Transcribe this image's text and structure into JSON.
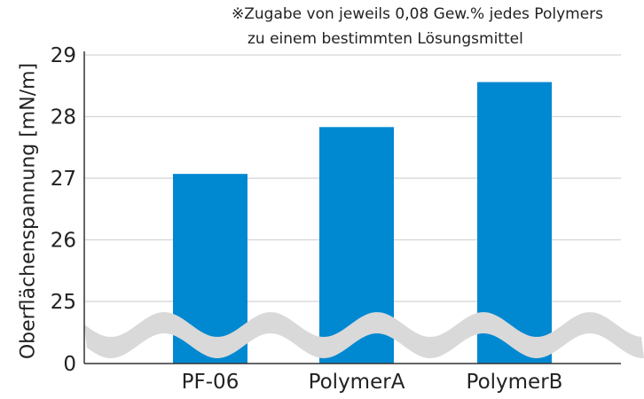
{
  "chart_data": {
    "type": "bar",
    "title": "",
    "note_lines": [
      "※Zugabe von jeweils 0,08 Gew.% jedes Polymers",
      "zu einem bestimmten Lösungsmittel"
    ],
    "xlabel": "",
    "ylabel": "Oberflächenspannung [mN/m]",
    "categories": [
      "PF-06",
      "PolymerA",
      "PolymerB"
    ],
    "values": [
      27.07,
      27.83,
      28.56
    ],
    "yticks": [
      0,
      25,
      26,
      27,
      28,
      29
    ],
    "ylim": [
      24.2,
      29
    ],
    "axis_break": "between 0 and 25",
    "grid": true,
    "legend": "none",
    "colors": {
      "bar": "#0088d1",
      "grid": "#d4d4d4",
      "axis": "#333333",
      "break_band": "#d9d9d9"
    }
  }
}
